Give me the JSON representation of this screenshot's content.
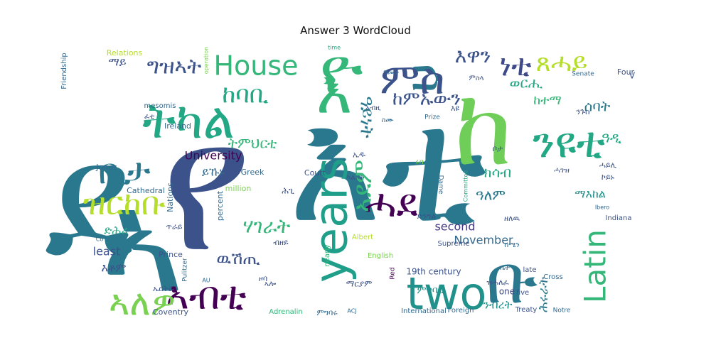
{
  "chart_data": {
    "type": "wordcloud",
    "title": "Answer 3 WordCloud",
    "background": "#ffffff",
    "colormap": "viridis",
    "words": [
      {
        "text": "ደ",
        "color": "#2a788e"
      },
      {
        "text": "የ",
        "color": "#3b528b"
      },
      {
        "text": "እቲ",
        "color": "#2a788e"
      },
      {
        "text": "እ",
        "color": "#35b779"
      },
      {
        "text": "ሰ",
        "color": "#2a788e"
      },
      {
        "text": "ቡ",
        "color": "#2a788e"
      },
      {
        "text": "ከ",
        "color": "#6ece58"
      },
      {
        "text": "ኣ",
        "color": "#2a788e"
      },
      {
        "text": "ዮ",
        "color": "#35b779"
      },
      {
        "text": "ምስ",
        "color": "#3b528b"
      },
      {
        "text": "ትካል",
        "color": "#22a884"
      },
      {
        "text": "years",
        "color": "#1f9e89"
      },
      {
        "text": "two",
        "color": "#21918c"
      },
      {
        "text": "ንዩቲ",
        "color": "#22a884"
      },
      {
        "text": "ሓደ",
        "color": "#440154"
      },
      {
        "text": "ኣብቲ",
        "color": "#440154"
      },
      {
        "text": "ኣለዎ",
        "color": "#7ad151"
      },
      {
        "text": "ዝርከቡ",
        "color": "#b5de2b"
      },
      {
        "text": "ቢታ",
        "color": "#2a788e"
      },
      {
        "text": "Latin",
        "color": "#35b779"
      },
      {
        "text": "House",
        "color": "#35b779"
      },
      {
        "text": "ግዝኣት",
        "color": "#3b528b"
      },
      {
        "text": "ከባቢ",
        "color": "#22a884"
      },
      {
        "text": "እዋን",
        "color": "#3b528b"
      },
      {
        "text": "ነቲ",
        "color": "#3e4a89"
      },
      {
        "text": "ጸሓይ",
        "color": "#b5de2b"
      },
      {
        "text": "ከምኡውን",
        "color": "#3b528b"
      },
      {
        "text": "ትምህርቲ",
        "color": "#35b779"
      },
      {
        "text": "ሃገራት",
        "color": "#35b779"
      },
      {
        "text": "ዉሽጢ",
        "color": "#3b528b"
      },
      {
        "text": "ኣደም",
        "color": "#35b779"
      },
      {
        "text": "ዓይነት",
        "color": "#2a788e"
      },
      {
        "text": "University",
        "color": "#440154"
      },
      {
        "text": "November",
        "color": "#31688e"
      },
      {
        "text": "second",
        "color": "#443983"
      },
      {
        "text": "least",
        "color": "#3b528b"
      },
      {
        "text": "ዓለም",
        "color": "#2a788e"
      },
      {
        "text": "ሰባት",
        "color": "#2a788e"
      },
      {
        "text": "ከተማ",
        "color": "#35b779"
      },
      {
        "text": "ወርሒ",
        "color": "#22a884"
      },
      {
        "text": "ክሳብ",
        "color": "#22a884"
      },
      {
        "text": "ዓዲ",
        "color": "#22a884"
      },
      {
        "text": "ሕሩራት",
        "color": "#2a788e"
      },
      {
        "text": "ማእከል",
        "color": "#21918c"
      },
      {
        "text": "ምግባር",
        "color": "#21918c"
      },
      {
        "text": "ንብረት",
        "color": "#21918c"
      },
      {
        "text": "19th century",
        "color": "#3b528b"
      },
      {
        "text": "one",
        "color": "#3e4a89"
      },
      {
        "text": "ይኹኑ",
        "color": "#31688e"
      },
      {
        "text": "ድሕሪ",
        "color": "#22a884"
      },
      {
        "text": "እቶም",
        "color": "#3b528b"
      },
      {
        "text": "ማይ",
        "color": "#3b528b"
      },
      {
        "text": "Ireland",
        "color": "#31688e"
      },
      {
        "text": "Greek",
        "color": "#31688e"
      },
      {
        "text": "Court",
        "color": "#3b528b"
      },
      {
        "text": "Cathedral",
        "color": "#31688e"
      },
      {
        "text": "Jones",
        "color": "#31688e"
      },
      {
        "text": "Relations",
        "color": "#b5de2b"
      },
      {
        "text": "Friendship",
        "color": "#31688e"
      },
      {
        "text": "mesomis",
        "color": "#31688e"
      },
      {
        "text": "Nations",
        "color": "#31688e"
      },
      {
        "text": "percent",
        "color": "#31688e"
      },
      {
        "text": "million",
        "color": "#7ad151"
      },
      {
        "text": "Prince",
        "color": "#3b528b"
      },
      {
        "text": "Supreme",
        "color": "#3b528b"
      },
      {
        "text": "English",
        "color": "#7ad151"
      },
      {
        "text": "Albert",
        "color": "#b5de2b"
      },
      {
        "text": "nearly",
        "color": "#35b779"
      },
      {
        "text": "International",
        "color": "#31688e"
      },
      {
        "text": "Foreign",
        "color": "#31688e"
      },
      {
        "text": "Treaty",
        "color": "#3b528b"
      },
      {
        "text": "Notre",
        "color": "#31688e"
      },
      {
        "text": "Dame",
        "color": "#31688e"
      },
      {
        "text": "Indiana",
        "color": "#3b528b"
      },
      {
        "text": "Four",
        "color": "#3b528b"
      },
      {
        "text": "Senate",
        "color": "#31688e"
      },
      {
        "text": "Cross",
        "color": "#31688e"
      },
      {
        "text": "late",
        "color": "#3b528b"
      },
      {
        "text": "five",
        "color": "#3b528b"
      },
      {
        "text": "Coventry",
        "color": "#3b528b"
      },
      {
        "text": "Adrenalin",
        "color": "#35b779"
      },
      {
        "text": "Pulitzer",
        "color": "#31688e"
      },
      {
        "text": "Red",
        "color": "#440154"
      },
      {
        "text": "Prize",
        "color": "#31688e"
      },
      {
        "text": "Committee",
        "color": "#22a884"
      },
      {
        "text": "operation",
        "color": "#7ad151"
      },
      {
        "text": "time",
        "color": "#22a884"
      },
      {
        "text": "AU",
        "color": "#31688e"
      },
      {
        "text": "ACJ",
        "color": "#31688e"
      },
      {
        "text": "Co",
        "color": "#31688e"
      },
      {
        "text": "V",
        "color": "#3b528b"
      },
      {
        "text": "Ibero",
        "color": "#31688e"
      },
      {
        "text": "ሓገዝ",
        "color": "#3b528b"
      },
      {
        "text": "ሩባ",
        "color": "#7ad151"
      },
      {
        "text": "ኢዱ",
        "color": "#3b528b"
      },
      {
        "text": "ዘለዉ",
        "color": "#3b528b"
      },
      {
        "text": "ጥራይ",
        "color": "#3b528b"
      },
      {
        "text": "ብዘይ",
        "color": "#3b528b"
      },
      {
        "text": "ምስላ",
        "color": "#3b528b"
      },
      {
        "text": "ድንግል",
        "color": "#3b528b"
      },
      {
        "text": "ሰሜን",
        "color": "#31688e"
      },
      {
        "text": "ምግባሩ",
        "color": "#31688e"
      },
      {
        "text": "ማርያም",
        "color": "#3b528b"
      },
      {
        "text": "ዝሓለፈ",
        "color": "#3b528b"
      },
      {
        "text": "ኤርትራ",
        "color": "#3b528b"
      },
      {
        "text": "ኣብዚ",
        "color": "#3b528b"
      },
      {
        "text": "ስሙ",
        "color": "#31688e"
      },
      {
        "text": "ሓይሊ",
        "color": "#3b528b"
      },
      {
        "text": "ቤት",
        "color": "#31688e"
      },
      {
        "text": "ንጉስ",
        "color": "#3b528b"
      },
      {
        "text": "ኮይኑ",
        "color": "#3b528b"
      },
      {
        "text": "እዩ",
        "color": "#3b528b"
      },
      {
        "text": "ኣሎ",
        "color": "#3b528b"
      },
      {
        "text": "ዓመት",
        "color": "#31688e"
      },
      {
        "text": "ፈቲ",
        "color": "#3b528b"
      },
      {
        "text": "ሕጊ",
        "color": "#3b528b"
      },
      {
        "text": "ቦታ",
        "color": "#3b528b"
      },
      {
        "text": "ዞባ",
        "color": "#3b528b"
      },
      {
        "text": "ካልኦት",
        "color": "#3b528b"
      }
    ]
  }
}
